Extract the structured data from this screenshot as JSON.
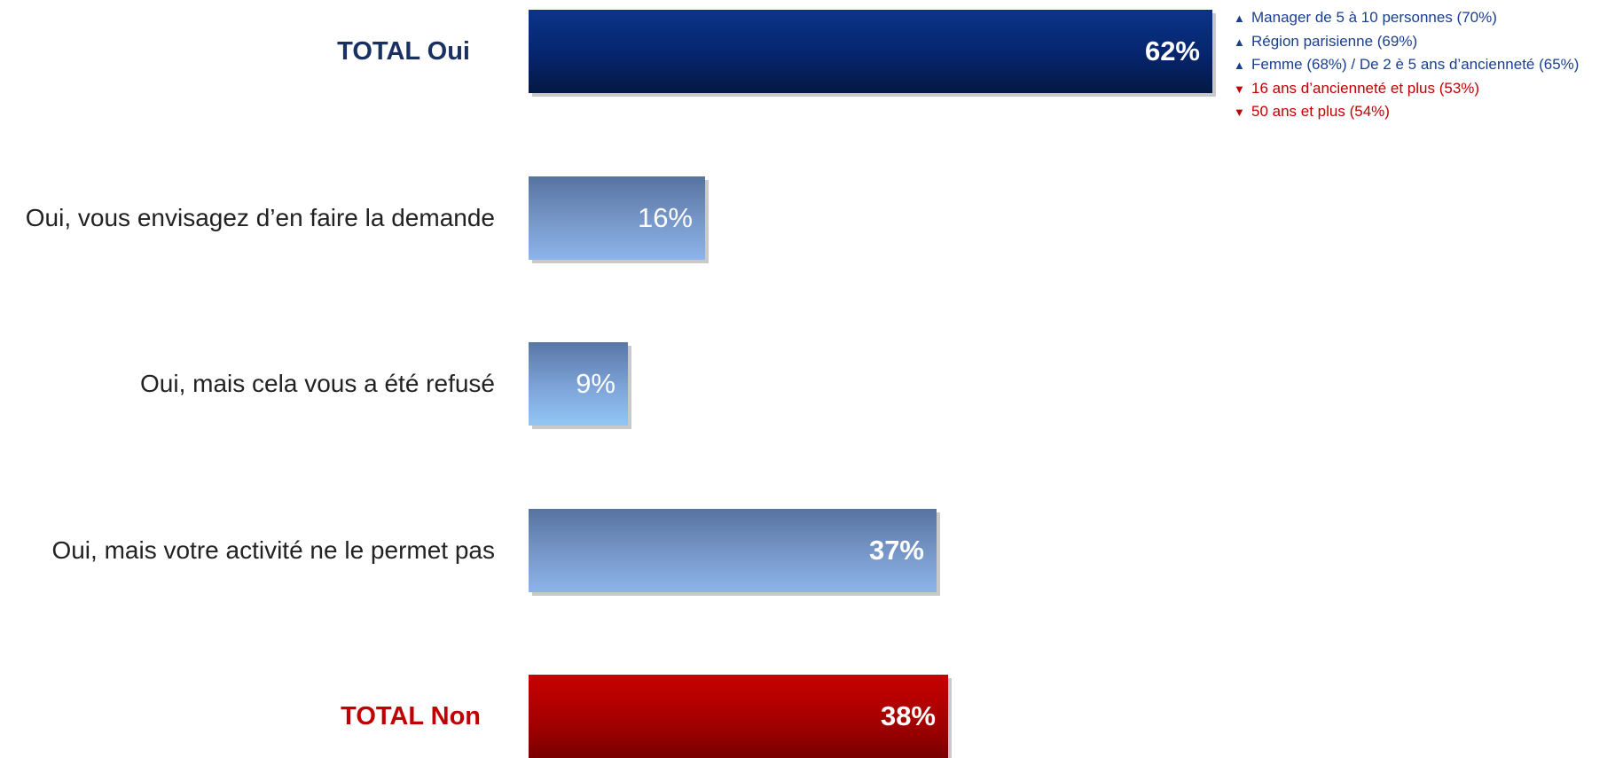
{
  "chart_data": {
    "type": "bar",
    "orientation": "horizontal",
    "categories": [
      "TOTAL Oui",
      "Oui, vous envisagez d’en faire la demande",
      "Oui, mais cela vous a été refusé",
      "Oui, mais votre activité ne le permet pas",
      "TOTAL Non"
    ],
    "values": [
      62,
      16,
      9,
      37,
      38
    ],
    "value_labels": [
      "62%",
      "16%",
      "9%",
      "37%",
      "38%"
    ],
    "unit": "%",
    "xlim": [
      0,
      100
    ],
    "grid": false,
    "legend": "none",
    "colors": {
      "total_oui": "#062670",
      "detail": "#7595c6",
      "total_non": "#a50000",
      "annotation_up": "#1a3f8f",
      "annotation_down": "#c00000"
    },
    "annotations": [
      {
        "direction": "up",
        "text": "Manager de 5 à 10 personnes (70%)"
      },
      {
        "direction": "up",
        "text": "Région parisienne (69%)"
      },
      {
        "direction": "up",
        "text": "Femme (68%) / De 2 è 5 ans d’ancienneté (65%)"
      },
      {
        "direction": "down",
        "text": "16 ans d’ancienneté et plus (53%)"
      },
      {
        "direction": "down",
        "text": "50 ans et plus (54%)"
      }
    ]
  },
  "icons": {
    "up": "▲",
    "down": "▼"
  }
}
